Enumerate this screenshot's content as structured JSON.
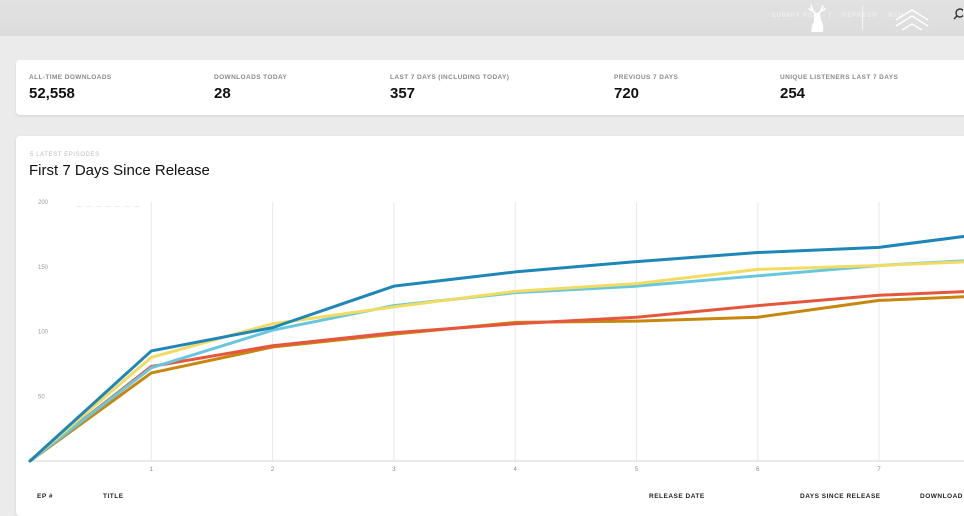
{
  "header": {
    "links": [
      "SUBMIT RSS",
      "|",
      "REFRESH",
      "RSH"
    ],
    "deer_logo_icon": "deer-head-icon",
    "brand_logo_icon": "chevron-badge-icon",
    "search_icon": "search-icon"
  },
  "stats": [
    {
      "label": "ALL-TIME DOWNLOADS",
      "value": "52,558"
    },
    {
      "label": "DOWNLOADS TODAY",
      "value": "28"
    },
    {
      "label": "LAST 7 DAYS (INCLUDING TODAY)",
      "value": "357"
    },
    {
      "label": "PREVIOUS 7 DAYS",
      "value": "720"
    },
    {
      "label": "UNIQUE LISTENERS LAST 7 DAYS",
      "value": "254"
    }
  ],
  "chart": {
    "eyebrow": "5 LATEST EPISODES",
    "title": "First 7 Days Since Release",
    "faded_legend": "— — — —   — —   —"
  },
  "chart_data": {
    "type": "line",
    "x": [
      0,
      1,
      2,
      3,
      4,
      5,
      6,
      7,
      8
    ],
    "xlabels": [
      "1",
      "2",
      "3",
      "4",
      "5",
      "6",
      "7"
    ],
    "yticks": [
      "50",
      "100",
      "150",
      "200"
    ],
    "ylim": [
      0,
      200
    ],
    "xlim": [
      0,
      7.7
    ],
    "grid": true,
    "series": [
      {
        "color": "#1f86b8",
        "values": [
          0,
          85,
          103,
          135,
          146,
          154,
          161,
          165,
          177
        ]
      },
      {
        "color": "#f1dc61",
        "values": [
          0,
          80,
          106,
          119,
          131,
          137,
          148,
          151,
          155
        ]
      },
      {
        "color": "#66c7df",
        "values": [
          0,
          72,
          101,
          120,
          130,
          135,
          143,
          151,
          156
        ]
      },
      {
        "color": "#e4573d",
        "values": [
          0,
          73,
          89,
          99,
          106,
          111,
          120,
          128,
          132
        ]
      },
      {
        "color": "#c7860d",
        "values": [
          0,
          68,
          88,
          98,
          107,
          108,
          111,
          124,
          128
        ]
      }
    ]
  },
  "table": {
    "columns": [
      "EP #",
      "TITLE",
      "RELEASE DATE",
      "DAYS SINCE RELEASE",
      "DOWNLOAD"
    ]
  }
}
